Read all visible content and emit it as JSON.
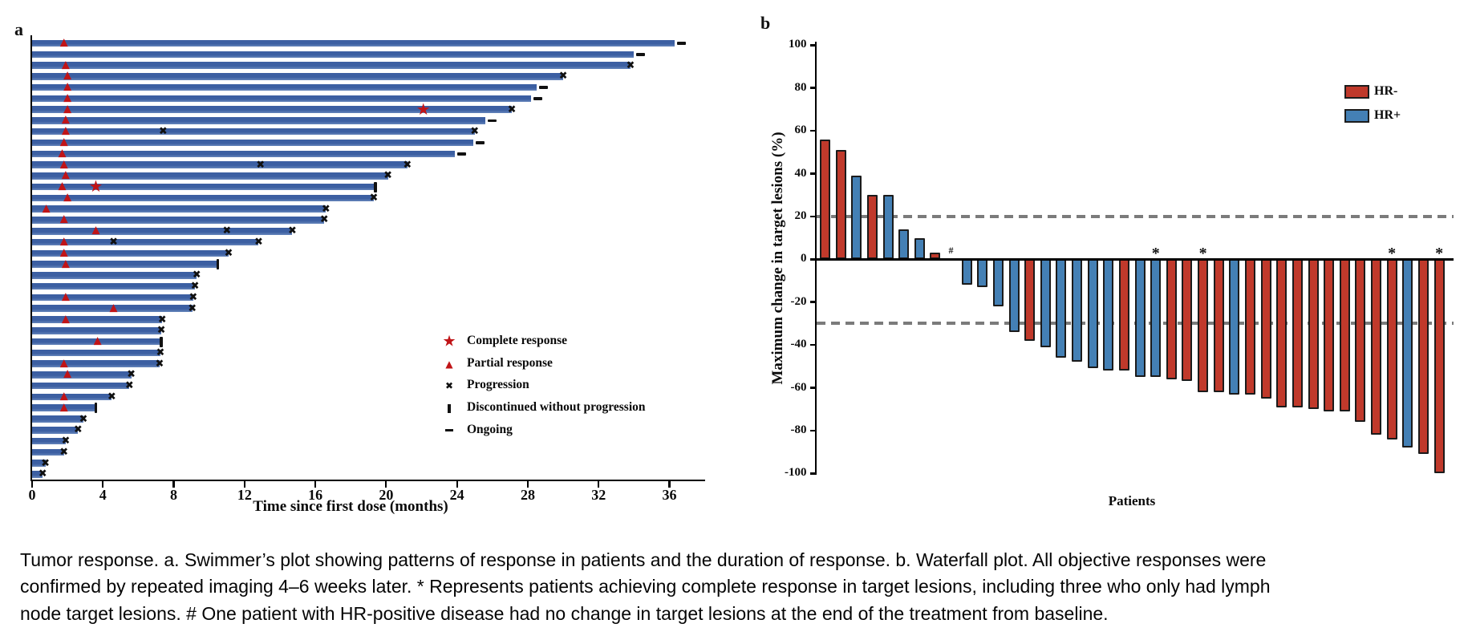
{
  "caption": {
    "lines": [
      "Tumor response. a. Swimmer’s plot showing patterns of response in patients and the duration of response. b. Waterfall plot. All objective responses were",
      "confirmed by repeated imaging 4–6 weeks later. * Represents patients achieving complete response in target lesions, including three who only had lymph",
      "node target lesions. # One patient with HR-positive disease had no change in target lesions at the end of the treatment from baseline."
    ]
  },
  "chart_data": [
    {
      "type": "swimmer",
      "panel_label": "a",
      "xlabel": "Time since first dose (months)",
      "xticks": [
        0,
        4,
        8,
        12,
        16,
        20,
        24,
        28,
        32,
        36
      ],
      "xlim": [
        0,
        38
      ],
      "bar_color": "#3c5fa2",
      "marker_color_red": "#c01417",
      "marker_color_black": "#101010",
      "marker_legend": [
        {
          "symbol": "star",
          "label": "Complete response"
        },
        {
          "symbol": "triangle",
          "label": "Partial response"
        },
        {
          "symbol": "x",
          "label": "Progression"
        },
        {
          "symbol": "bar",
          "label": "Discontinued without progression"
        },
        {
          "symbol": "dash",
          "label": "Ongoing"
        }
      ],
      "patients": [
        {
          "months": 36.3,
          "events": [
            {
              "type": "partial_response",
              "month": 1.8
            },
            {
              "type": "ongoing"
            }
          ]
        },
        {
          "months": 34.0,
          "events": [
            {
              "type": "ongoing"
            }
          ]
        },
        {
          "months": 33.8,
          "events": [
            {
              "type": "partial_response",
              "month": 1.9
            },
            {
              "type": "progression"
            }
          ]
        },
        {
          "months": 30.0,
          "events": [
            {
              "type": "partial_response",
              "month": 2.0
            },
            {
              "type": "progression"
            }
          ]
        },
        {
          "months": 28.5,
          "events": [
            {
              "type": "partial_response",
              "month": 2.0
            },
            {
              "type": "ongoing"
            }
          ]
        },
        {
          "months": 28.2,
          "events": [
            {
              "type": "partial_response",
              "month": 2.0
            },
            {
              "type": "ongoing"
            }
          ]
        },
        {
          "months": 27.1,
          "events": [
            {
              "type": "partial_response",
              "month": 2.0
            },
            {
              "type": "complete_response",
              "month": 22.1
            },
            {
              "type": "progression"
            }
          ]
        },
        {
          "months": 25.6,
          "events": [
            {
              "type": "partial_response",
              "month": 1.9
            },
            {
              "type": "ongoing"
            }
          ]
        },
        {
          "months": 25.0,
          "events": [
            {
              "type": "partial_response",
              "month": 1.9
            },
            {
              "type": "progression",
              "month": 7.4
            },
            {
              "type": "progression"
            }
          ]
        },
        {
          "months": 24.9,
          "events": [
            {
              "type": "partial_response",
              "month": 1.8
            },
            {
              "type": "ongoing"
            }
          ]
        },
        {
          "months": 23.9,
          "events": [
            {
              "type": "partial_response",
              "month": 1.7
            },
            {
              "type": "ongoing"
            }
          ]
        },
        {
          "months": 21.2,
          "events": [
            {
              "type": "partial_response",
              "month": 1.8
            },
            {
              "type": "progression",
              "month": 12.9
            },
            {
              "type": "progression"
            }
          ]
        },
        {
          "months": 20.1,
          "events": [
            {
              "type": "partial_response",
              "month": 1.9
            },
            {
              "type": "progression"
            }
          ]
        },
        {
          "months": 19.4,
          "events": [
            {
              "type": "partial_response",
              "month": 1.7
            },
            {
              "type": "complete_response",
              "month": 3.6
            },
            {
              "type": "discontinued"
            }
          ]
        },
        {
          "months": 19.3,
          "events": [
            {
              "type": "partial_response",
              "month": 2.0
            },
            {
              "type": "progression"
            }
          ]
        },
        {
          "months": 16.6,
          "events": [
            {
              "type": "partial_response",
              "month": 0.8
            },
            {
              "type": "progression"
            }
          ]
        },
        {
          "months": 16.5,
          "events": [
            {
              "type": "partial_response",
              "month": 1.8
            },
            {
              "type": "progression"
            }
          ]
        },
        {
          "months": 14.7,
          "events": [
            {
              "type": "partial_response",
              "month": 3.6
            },
            {
              "type": "progression",
              "month": 11.0
            },
            {
              "type": "progression"
            }
          ]
        },
        {
          "months": 12.8,
          "events": [
            {
              "type": "partial_response",
              "month": 1.8
            },
            {
              "type": "progression",
              "month": 4.6
            },
            {
              "type": "progression"
            }
          ]
        },
        {
          "months": 11.1,
          "events": [
            {
              "type": "partial_response",
              "month": 1.8
            },
            {
              "type": "progression"
            }
          ]
        },
        {
          "months": 10.5,
          "events": [
            {
              "type": "partial_response",
              "month": 1.9
            },
            {
              "type": "discontinued"
            }
          ]
        },
        {
          "months": 9.3,
          "events": [
            {
              "type": "progression"
            }
          ]
        },
        {
          "months": 9.2,
          "events": [
            {
              "type": "progression"
            }
          ]
        },
        {
          "months": 9.1,
          "events": [
            {
              "type": "partial_response",
              "month": 1.9
            },
            {
              "type": "progression"
            }
          ]
        },
        {
          "months": 9.05,
          "events": [
            {
              "type": "partial_response",
              "month": 4.6
            },
            {
              "type": "progression"
            }
          ]
        },
        {
          "months": 7.35,
          "events": [
            {
              "type": "partial_response",
              "month": 1.9
            },
            {
              "type": "progression"
            }
          ]
        },
        {
          "months": 7.3,
          "events": [
            {
              "type": "progression"
            }
          ]
        },
        {
          "months": 7.3,
          "events": [
            {
              "type": "partial_response",
              "month": 3.7
            },
            {
              "type": "discontinued"
            }
          ]
        },
        {
          "months": 7.25,
          "events": [
            {
              "type": "progression"
            }
          ]
        },
        {
          "months": 7.2,
          "events": [
            {
              "type": "partial_response",
              "month": 1.8
            },
            {
              "type": "progression"
            }
          ]
        },
        {
          "months": 5.6,
          "events": [
            {
              "type": "partial_response",
              "month": 2.0
            },
            {
              "type": "progression"
            }
          ]
        },
        {
          "months": 5.5,
          "events": [
            {
              "type": "progression"
            }
          ]
        },
        {
          "months": 4.5,
          "events": [
            {
              "type": "partial_response",
              "month": 1.8
            },
            {
              "type": "progression"
            }
          ]
        },
        {
          "months": 3.6,
          "events": [
            {
              "type": "partial_response",
              "month": 1.8
            },
            {
              "type": "discontinued"
            }
          ]
        },
        {
          "months": 2.9,
          "events": [
            {
              "type": "progression"
            }
          ]
        },
        {
          "months": 2.6,
          "events": [
            {
              "type": "progression"
            }
          ]
        },
        {
          "months": 1.9,
          "events": [
            {
              "type": "progression"
            }
          ]
        },
        {
          "months": 1.8,
          "events": [
            {
              "type": "progression"
            }
          ]
        },
        {
          "months": 0.75,
          "events": [
            {
              "type": "progression"
            }
          ]
        },
        {
          "months": 0.6,
          "events": [
            {
              "type": "progression"
            }
          ]
        }
      ]
    },
    {
      "type": "bar",
      "panel_label": "b",
      "xlabel": "Patients",
      "ylabel": "Maximum change in target lesions (%)",
      "ylim": [
        -100,
        100
      ],
      "yticks": [
        100,
        80,
        60,
        40,
        20,
        0,
        -20,
        -40,
        -60,
        -80,
        -100
      ],
      "reference_lines": [
        20,
        -30
      ],
      "reference_line_color": "#7b7b7b",
      "legend": [
        {
          "name": "HR-",
          "color": "#c0392b"
        },
        {
          "name": "HR+",
          "color": "#4480b5"
        }
      ],
      "patients": [
        {
          "v": 56,
          "g": "HR-"
        },
        {
          "v": 51,
          "g": "HR-"
        },
        {
          "v": 39,
          "g": "HR+"
        },
        {
          "v": 30,
          "g": "HR-"
        },
        {
          "v": 30,
          "g": "HR+"
        },
        {
          "v": 14,
          "g": "HR+"
        },
        {
          "v": 10,
          "g": "HR+"
        },
        {
          "v": 3,
          "g": "HR-"
        },
        {
          "v": 0,
          "g": "HR+",
          "mark": "#"
        },
        {
          "v": -12,
          "g": "HR+"
        },
        {
          "v": -13,
          "g": "HR+"
        },
        {
          "v": -22,
          "g": "HR+"
        },
        {
          "v": -34,
          "g": "HR+"
        },
        {
          "v": -38,
          "g": "HR-"
        },
        {
          "v": -41,
          "g": "HR+"
        },
        {
          "v": -46,
          "g": "HR+"
        },
        {
          "v": -48,
          "g": "HR+"
        },
        {
          "v": -51,
          "g": "HR+"
        },
        {
          "v": -52,
          "g": "HR+"
        },
        {
          "v": -52,
          "g": "HR-"
        },
        {
          "v": -55,
          "g": "HR+"
        },
        {
          "v": -55,
          "g": "HR+",
          "mark": "*"
        },
        {
          "v": -56,
          "g": "HR-"
        },
        {
          "v": -57,
          "g": "HR-"
        },
        {
          "v": -62,
          "g": "HR-",
          "mark": "*"
        },
        {
          "v": -62,
          "g": "HR-"
        },
        {
          "v": -63,
          "g": "HR+"
        },
        {
          "v": -63,
          "g": "HR-"
        },
        {
          "v": -65,
          "g": "HR-"
        },
        {
          "v": -69,
          "g": "HR-"
        },
        {
          "v": -69,
          "g": "HR-"
        },
        {
          "v": -70,
          "g": "HR-"
        },
        {
          "v": -71,
          "g": "HR-"
        },
        {
          "v": -71,
          "g": "HR-"
        },
        {
          "v": -76,
          "g": "HR-"
        },
        {
          "v": -82,
          "g": "HR-"
        },
        {
          "v": -84,
          "g": "HR-",
          "mark": "*"
        },
        {
          "v": -88,
          "g": "HR+"
        },
        {
          "v": -91,
          "g": "HR-"
        },
        {
          "v": -100,
          "g": "HR-",
          "mark": "*"
        }
      ]
    }
  ]
}
